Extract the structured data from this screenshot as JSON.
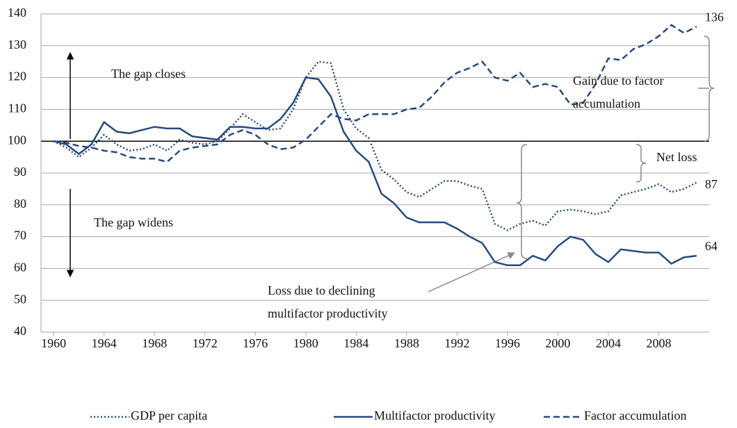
{
  "chart_data": {
    "type": "line",
    "x": [
      1960,
      1961,
      1962,
      1963,
      1964,
      1965,
      1966,
      1967,
      1968,
      1969,
      1970,
      1971,
      1972,
      1973,
      1974,
      1975,
      1976,
      1977,
      1978,
      1979,
      1980,
      1981,
      1982,
      1983,
      1984,
      1985,
      1986,
      1987,
      1988,
      1989,
      1990,
      1991,
      1992,
      1993,
      1994,
      1995,
      1996,
      1997,
      1998,
      1999,
      2000,
      2001,
      2002,
      2003,
      2004,
      2005,
      2006,
      2007,
      2008,
      2009,
      2010,
      2011
    ],
    "xlim": [
      1959,
      2012
    ],
    "xticks": [
      1960,
      1964,
      1968,
      1972,
      1976,
      1980,
      1984,
      1988,
      1992,
      1996,
      2000,
      2004,
      2008
    ],
    "ylim": [
      40,
      140
    ],
    "yticks": [
      40,
      50,
      60,
      70,
      80,
      90,
      100,
      110,
      120,
      130,
      140
    ],
    "grid": true,
    "reference_line": 100,
    "legend": "bottom",
    "series": [
      {
        "name": "GDP per capita",
        "color": "#254a7c",
        "style": "dotted",
        "values": [
          100,
          98,
          95,
          98,
          102,
          99,
          97,
          97.5,
          99,
          97,
          100.5,
          99.5,
          99,
          100,
          104,
          108.5,
          106,
          103.5,
          104,
          110,
          120,
          125,
          124.5,
          110,
          104,
          101,
          91,
          88,
          84,
          82.5,
          85,
          87.5,
          87.5,
          86,
          85,
          74,
          72,
          74,
          75,
          73.5,
          78,
          78.5,
          78,
          77,
          78,
          83,
          84,
          85,
          86.5,
          84,
          85,
          87
        ]
      },
      {
        "name": "Multifactor productivity",
        "color": "#254a7c",
        "style": "solid",
        "values": [
          100,
          99,
          96,
          99,
          106,
          103,
          102.5,
          103.5,
          104.5,
          104,
          104,
          101.5,
          101,
          100.5,
          104.5,
          104.5,
          104,
          104,
          107,
          112,
          120,
          119.5,
          114,
          103,
          97,
          93.5,
          83.5,
          80.5,
          76,
          74.5,
          74.5,
          74.5,
          72.5,
          70,
          68,
          62,
          61,
          61,
          64,
          62.5,
          67,
          70,
          69,
          64.5,
          62,
          66,
          65.5,
          65,
          65,
          61.5,
          63.5,
          64
        ]
      },
      {
        "name": "Factor accumulation",
        "color": "#254a7c",
        "style": "dashed",
        "values": [
          100,
          99.5,
          98.5,
          98,
          97,
          96.5,
          95,
          94.5,
          94.5,
          93.5,
          97,
          98,
          98.5,
          99,
          102,
          103.5,
          102,
          99,
          97.5,
          98,
          100.5,
          104.5,
          108.5,
          107,
          106.5,
          108.5,
          108.5,
          108.5,
          110,
          110.5,
          114,
          118.5,
          121.5,
          123,
          125,
          120,
          119,
          121.5,
          117,
          118,
          117,
          111.5,
          112,
          118,
          126,
          125.5,
          129,
          130.5,
          133,
          136.5,
          134,
          136
        ]
      }
    ],
    "annotations": [
      {
        "text": [
          "The gap closes"
        ]
      },
      {
        "text": [
          "The gap widens"
        ]
      },
      {
        "text": [
          "Gain due to factor",
          "accumulation"
        ]
      },
      {
        "text": [
          "Net loss"
        ]
      },
      {
        "text": [
          "Loss due to declining",
          "multifactor productivity"
        ]
      }
    ]
  }
}
